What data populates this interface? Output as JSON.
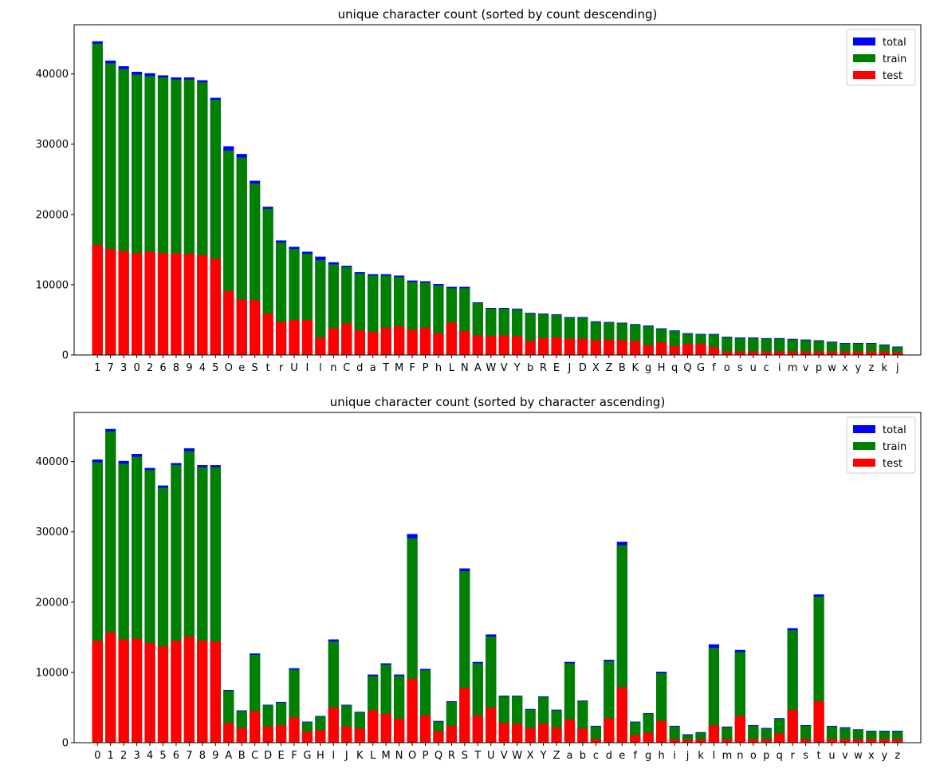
{
  "chart_data": [
    {
      "type": "bar",
      "stacked": "overlay",
      "title": "unique character count (sorted by count descending)",
      "xlabel": "",
      "ylabel": "",
      "ylim": [
        0,
        47000
      ],
      "yticks": [
        0,
        10000,
        20000,
        30000,
        40000
      ],
      "grid": false,
      "legend": "top-right",
      "categories": [
        "1",
        "7",
        "3",
        "0",
        "2",
        "6",
        "8",
        "9",
        "4",
        "5",
        "O",
        "e",
        "S",
        "t",
        "r",
        "U",
        "I",
        "l",
        "n",
        "C",
        "d",
        "a",
        "T",
        "M",
        "F",
        "P",
        "h",
        "L",
        "N",
        "A",
        "W",
        "V",
        "Y",
        "b",
        "R",
        "E",
        "J",
        "D",
        "X",
        "Z",
        "B",
        "K",
        "g",
        "H",
        "q",
        "Q",
        "G",
        "f",
        "o",
        "s",
        "u",
        "c",
        "i",
        "m",
        "v",
        "p",
        "w",
        "x",
        "y",
        "z",
        "k",
        "j"
      ],
      "series": [
        {
          "name": "total",
          "color": "#0000ff",
          "values": [
            44650,
            41900,
            41100,
            40300,
            40100,
            39800,
            39500,
            39500,
            39100,
            36600,
            29700,
            28600,
            24800,
            21100,
            16300,
            15400,
            14700,
            14000,
            13200,
            12700,
            11800,
            11500,
            11500,
            11300,
            10600,
            10500,
            10100,
            9700,
            9700,
            7500,
            6700,
            6700,
            6600,
            6000,
            5900,
            5800,
            5400,
            5400,
            4800,
            4700,
            4600,
            4400,
            4200,
            3800,
            3500,
            3100,
            3000,
            3000,
            2600,
            2500,
            2500,
            2400,
            2400,
            2300,
            2200,
            2100,
            1900,
            1700,
            1700,
            1700,
            1500,
            1200
          ]
        },
        {
          "name": "train",
          "color": "#008000",
          "values": [
            44300,
            41500,
            40700,
            39900,
            39700,
            39500,
            39200,
            39200,
            38800,
            36300,
            29100,
            28100,
            24400,
            20800,
            16000,
            15100,
            14400,
            13500,
            12900,
            12500,
            11600,
            11300,
            11300,
            11100,
            10400,
            10300,
            9900,
            9500,
            9500,
            7400,
            6600,
            6600,
            6500,
            5900,
            5800,
            5700,
            5300,
            5300,
            4700,
            4600,
            4500,
            4300,
            4100,
            3700,
            3400,
            3000,
            2900,
            2900,
            2500,
            2400,
            2400,
            2300,
            2300,
            2200,
            2100,
            2000,
            1800,
            1600,
            1600,
            1600,
            1400,
            1100
          ]
        },
        {
          "name": "test",
          "color": "#ff0000",
          "values": [
            15700,
            15100,
            14800,
            14500,
            14700,
            14500,
            14500,
            14400,
            14200,
            13700,
            9100,
            7900,
            7800,
            5900,
            4700,
            5000,
            5000,
            2500,
            3800,
            4500,
            3500,
            3300,
            3900,
            4100,
            3600,
            3900,
            3100,
            4600,
            3400,
            2800,
            2700,
            2800,
            2700,
            2000,
            2400,
            2500,
            2300,
            2300,
            2100,
            2200,
            2100,
            2000,
            1400,
            1800,
            1300,
            1600,
            1600,
            1100,
            500,
            500,
            500,
            500,
            500,
            500,
            500,
            500,
            500,
            500,
            500,
            500,
            500,
            400
          ]
        }
      ]
    },
    {
      "type": "bar",
      "stacked": "overlay",
      "title": "unique character count (sorted by character ascending)",
      "xlabel": "",
      "ylabel": "",
      "ylim": [
        0,
        47000
      ],
      "yticks": [
        0,
        10000,
        20000,
        30000,
        40000
      ],
      "grid": false,
      "legend": "top-right",
      "categories": [
        "0",
        "1",
        "2",
        "3",
        "4",
        "5",
        "6",
        "7",
        "8",
        "9",
        "A",
        "B",
        "C",
        "D",
        "E",
        "F",
        "G",
        "H",
        "I",
        "J",
        "K",
        "L",
        "M",
        "N",
        "O",
        "P",
        "Q",
        "R",
        "S",
        "T",
        "U",
        "V",
        "W",
        "X",
        "Y",
        "Z",
        "a",
        "b",
        "c",
        "d",
        "e",
        "f",
        "g",
        "h",
        "i",
        "j",
        "k",
        "l",
        "m",
        "n",
        "o",
        "p",
        "q",
        "r",
        "s",
        "t",
        "u",
        "v",
        "w",
        "x",
        "y",
        "z"
      ],
      "series": [
        {
          "name": "total",
          "color": "#0000ff",
          "values": [
            40300,
            44650,
            40100,
            41100,
            39100,
            36600,
            39800,
            41900,
            39500,
            39500,
            7500,
            4600,
            12700,
            5400,
            5800,
            10600,
            3000,
            3800,
            14700,
            5400,
            4400,
            9700,
            11300,
            9700,
            29700,
            10500,
            3100,
            5900,
            24800,
            11500,
            15400,
            6700,
            6700,
            4800,
            6600,
            4700,
            11500,
            6000,
            2400,
            11800,
            28600,
            3000,
            4200,
            10100,
            2400,
            1200,
            1500,
            14000,
            2300,
            13200,
            2500,
            2100,
            3500,
            16300,
            2500,
            21100,
            2400,
            2200,
            1900,
            1700,
            1700,
            1700
          ]
        },
        {
          "name": "train",
          "color": "#008000",
          "values": [
            39900,
            44300,
            39700,
            40700,
            38800,
            36300,
            39500,
            41500,
            39200,
            39200,
            7400,
            4500,
            12500,
            5300,
            5700,
            10400,
            2900,
            3700,
            14400,
            5300,
            4300,
            9500,
            11100,
            9500,
            29100,
            10300,
            3000,
            5800,
            24400,
            11300,
            15100,
            6600,
            6600,
            4700,
            6500,
            4600,
            11300,
            5900,
            2300,
            11600,
            28100,
            2900,
            4100,
            9900,
            2300,
            1100,
            1400,
            13500,
            2200,
            12900,
            2400,
            2000,
            3400,
            16000,
            2400,
            20800,
            2300,
            2100,
            1800,
            1600,
            1600,
            1600
          ]
        },
        {
          "name": "test",
          "color": "#ff0000",
          "values": [
            14500,
            15700,
            14700,
            14800,
            14200,
            13700,
            14500,
            15100,
            14500,
            14400,
            2800,
            2100,
            4500,
            2300,
            2500,
            3600,
            1600,
            1800,
            5000,
            2300,
            2000,
            4600,
            4100,
            3400,
            9100,
            3900,
            1600,
            2400,
            7800,
            3900,
            5000,
            2800,
            2700,
            2100,
            2700,
            2200,
            3300,
            2000,
            500,
            3500,
            7900,
            1100,
            1400,
            3100,
            500,
            400,
            500,
            2500,
            500,
            3800,
            500,
            500,
            1300,
            4700,
            500,
            5900,
            500,
            500,
            500,
            500,
            500,
            500
          ]
        }
      ]
    }
  ]
}
